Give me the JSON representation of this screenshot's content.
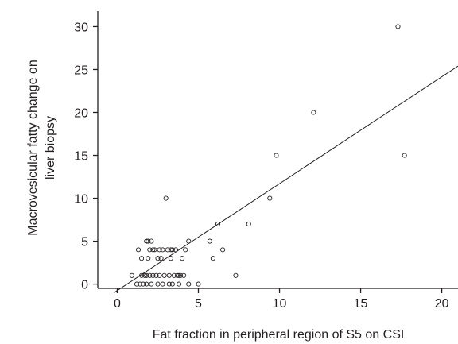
{
  "chart_data": {
    "type": "scatter",
    "title": "",
    "xlabel": "Fat fraction in peripheral region of S5 on CSI",
    "ylabel_lines": [
      "Macrovesicular fatty change on",
      "liver biopsy"
    ],
    "xlim": [
      -1.2,
      21
    ],
    "ylim": [
      -0.5,
      31.8
    ],
    "xticks": [
      0,
      5,
      10,
      15,
      20
    ],
    "yticks": [
      0,
      5,
      10,
      15,
      20,
      25,
      30
    ],
    "grid": false,
    "marker": "open-circle",
    "colors": {
      "ink": "#231f20",
      "background": "#ffffff"
    },
    "regression_line": {
      "x": [
        -0.2,
        21
      ],
      "y": [
        -1.0,
        25.4
      ]
    },
    "points": [
      {
        "x": 0.9,
        "y": 1
      },
      {
        "x": 1.2,
        "y": 0
      },
      {
        "x": 1.3,
        "y": 4
      },
      {
        "x": 1.4,
        "y": 0
      },
      {
        "x": 1.5,
        "y": 1
      },
      {
        "x": 1.5,
        "y": 3
      },
      {
        "x": 1.6,
        "y": 0
      },
      {
        "x": 1.7,
        "y": 1
      },
      {
        "x": 1.8,
        "y": 0
      },
      {
        "x": 1.8,
        "y": 5
      },
      {
        "x": 1.8,
        "y": 1
      },
      {
        "x": 1.9,
        "y": 3
      },
      {
        "x": 1.9,
        "y": 5
      },
      {
        "x": 2.0,
        "y": 1
      },
      {
        "x": 2.0,
        "y": 4
      },
      {
        "x": 2.1,
        "y": 5
      },
      {
        "x": 2.1,
        "y": 0
      },
      {
        "x": 2.2,
        "y": 4
      },
      {
        "x": 2.2,
        "y": 1
      },
      {
        "x": 2.3,
        "y": 4
      },
      {
        "x": 2.4,
        "y": 1
      },
      {
        "x": 2.5,
        "y": 3
      },
      {
        "x": 2.5,
        "y": 0
      },
      {
        "x": 2.6,
        "y": 4
      },
      {
        "x": 2.6,
        "y": 1
      },
      {
        "x": 2.7,
        "y": 3
      },
      {
        "x": 2.8,
        "y": 4
      },
      {
        "x": 2.8,
        "y": 0
      },
      {
        "x": 2.9,
        "y": 1
      },
      {
        "x": 3.0,
        "y": 10
      },
      {
        "x": 3.1,
        "y": 4
      },
      {
        "x": 3.2,
        "y": 1
      },
      {
        "x": 3.2,
        "y": 0
      },
      {
        "x": 3.3,
        "y": 4
      },
      {
        "x": 3.3,
        "y": 3
      },
      {
        "x": 3.4,
        "y": 0
      },
      {
        "x": 3.4,
        "y": 4
      },
      {
        "x": 3.5,
        "y": 1
      },
      {
        "x": 3.6,
        "y": 4
      },
      {
        "x": 3.7,
        "y": 1
      },
      {
        "x": 3.8,
        "y": 0
      },
      {
        "x": 3.8,
        "y": 1
      },
      {
        "x": 3.9,
        "y": 1
      },
      {
        "x": 4.0,
        "y": 3
      },
      {
        "x": 4.1,
        "y": 1
      },
      {
        "x": 4.2,
        "y": 4
      },
      {
        "x": 4.4,
        "y": 5
      },
      {
        "x": 4.4,
        "y": 0
      },
      {
        "x": 5.0,
        "y": 0
      },
      {
        "x": 5.7,
        "y": 5
      },
      {
        "x": 5.9,
        "y": 3
      },
      {
        "x": 6.2,
        "y": 7
      },
      {
        "x": 6.5,
        "y": 4
      },
      {
        "x": 7.3,
        "y": 1
      },
      {
        "x": 8.1,
        "y": 7
      },
      {
        "x": 9.4,
        "y": 10
      },
      {
        "x": 9.8,
        "y": 15
      },
      {
        "x": 12.1,
        "y": 20
      },
      {
        "x": 17.3,
        "y": 30
      },
      {
        "x": 17.7,
        "y": 15
      }
    ]
  }
}
